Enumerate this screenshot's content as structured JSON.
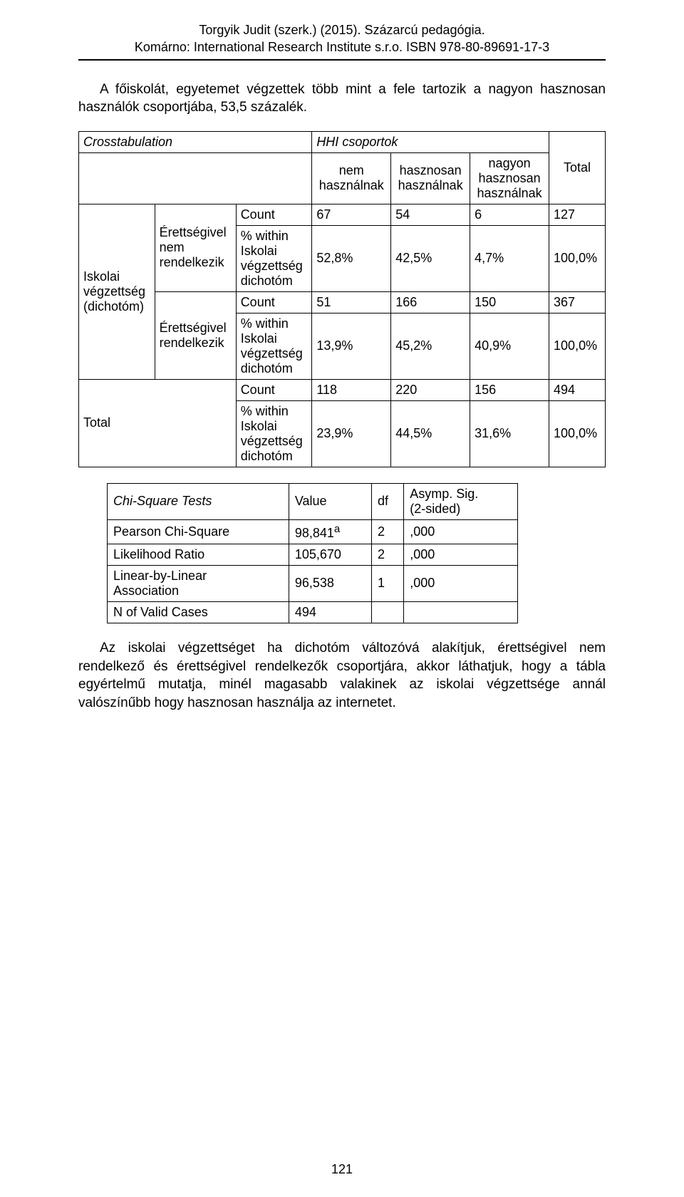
{
  "header": {
    "l1": "Torgyik Judit (szerk.) (2015). Százarcú pedagógia.",
    "l2": "Komárno: International Research Institute s.r.o. ISBN 978-80-89691-17-3"
  },
  "intro": "A főiskolát, egyetemet végzettek több mint a fele tartozik a nagyon hasznosan használók csoportjába, 53,5 százalék.",
  "t1": {
    "title": "Crosstabulation",
    "top_header": "HHI csoportok",
    "top_total": "Total",
    "col1": "nem\nhasználnak",
    "col2": "hasznosan\nhasználnak",
    "col3": "nagyon\nhasznosan\nhasználnak",
    "rowhead": "Iskolai\nvégzettség\n(dichotóm)",
    "grp1": "Érettségivel\nnem\nrendelkezik",
    "grp2": "Érettségivel\nrendelkezik",
    "r_count": "Count",
    "r_within": "% within\nIskolai\nvégzettség\ndichotóm",
    "total_label": "Total",
    "val": {
      "a1": "67",
      "a2": "54",
      "a3": "6",
      "a4": "127",
      "b1": "52,8%",
      "b2": "42,5%",
      "b3": "4,7%",
      "b4": "100,0%",
      "c1": "51",
      "c2": "166",
      "c3": "150",
      "c4": "367",
      "d1": "13,9%",
      "d2": "45,2%",
      "d3": "40,9%",
      "d4": "100,0%",
      "e1": "118",
      "e2": "220",
      "e3": "156",
      "e4": "494",
      "f1": "23,9%",
      "f2": "44,5%",
      "f3": "31,6%",
      "f4": "100,0%"
    }
  },
  "t2": {
    "title": "Chi-Square Tests",
    "h1": "Value",
    "h2": "df",
    "h3": "Asymp. Sig.\n(2-sided)",
    "r1": "Pearson Chi-Square",
    "r1v": "98,841",
    "r1sup": "a",
    "r1df": "2",
    "r1p": ",000",
    "r2": "Likelihood Ratio",
    "r2v": "105,670",
    "r2df": "2",
    "r2p": ",000",
    "r3": "Linear-by-Linear\nAssociation",
    "r3v": "96,538",
    "r3df": "1",
    "r3p": ",000",
    "r4": "N of Valid Cases",
    "r4v": "494"
  },
  "closing": "Az iskolai végzettséget ha dichotóm változóvá alakítjuk, érettségivel nem rendelkező és érettségivel rendelkezők csoportjára, akkor láthatjuk, hogy a tábla egyértelmű mutatja, minél magasabb valakinek az iskolai végzettsége annál valószínűbb hogy hasznosan használja az internetet.",
  "page_number": "121"
}
